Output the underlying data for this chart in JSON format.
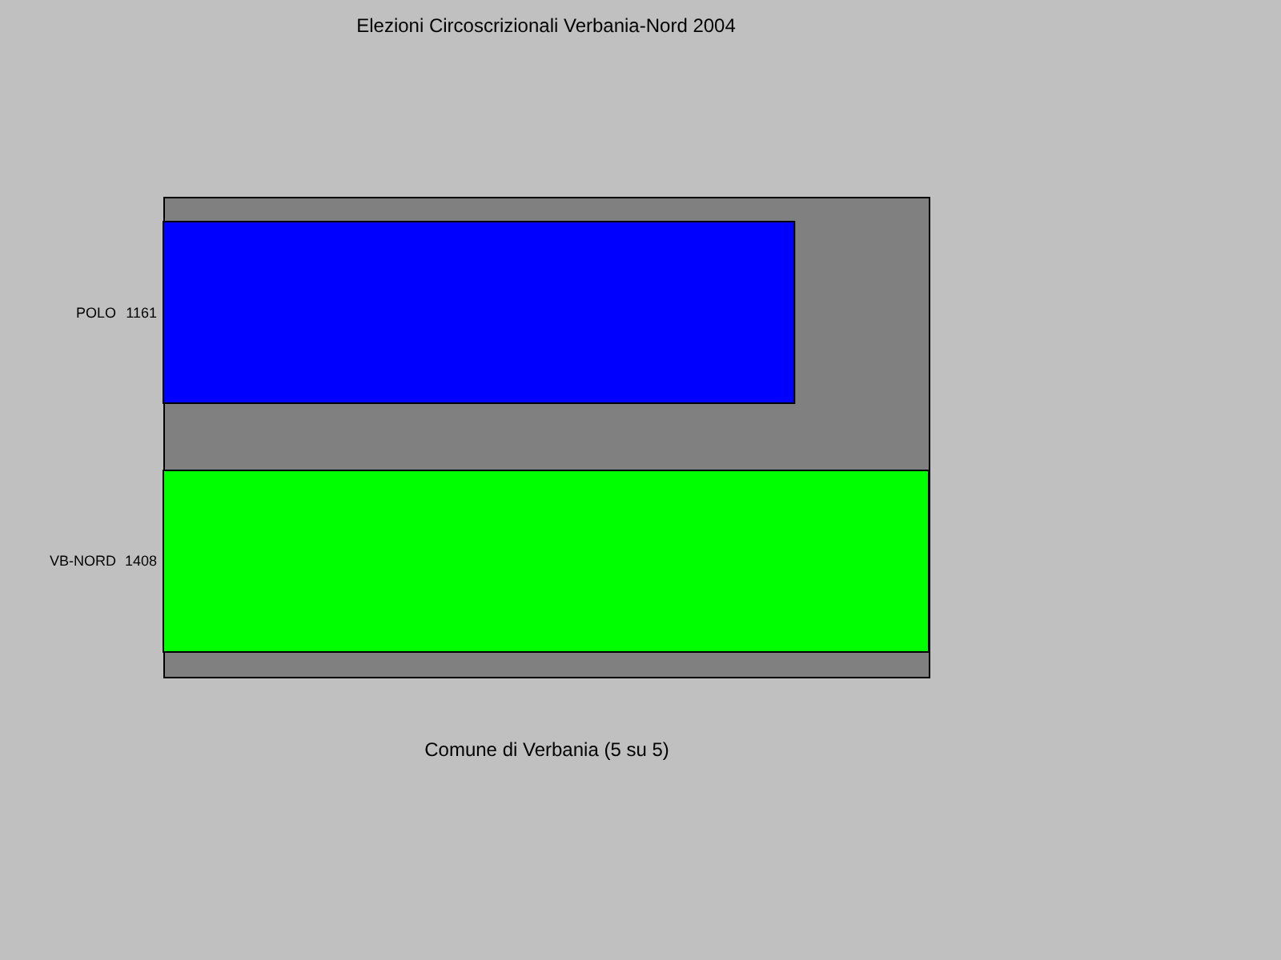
{
  "chart_data": {
    "type": "bar",
    "orientation": "horizontal",
    "title": "Elezioni Circoscrizionali Verbania-Nord 2004",
    "xlabel": "Comune di Verbania (5 su 5)",
    "categories": [
      "POLO",
      "VB-NORD"
    ],
    "values": [
      1161,
      1408
    ],
    "colors": [
      "#0000ff",
      "#00ff00"
    ],
    "value_labels": [
      "1161",
      "1408"
    ],
    "tick_labels": "y"
  }
}
